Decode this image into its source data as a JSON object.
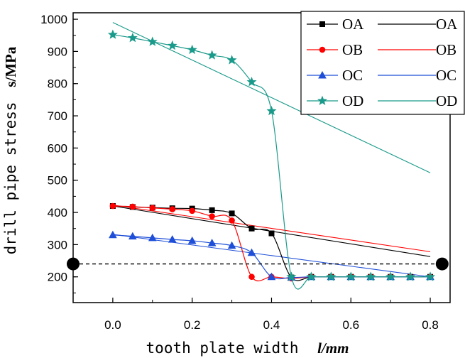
{
  "chart_data": {
    "type": "line",
    "title": "",
    "xlabel": {
      "text": "tooth plate width",
      "unit": "l/mm"
    },
    "ylabel": {
      "text": "drill pipe stress",
      "unit": "s/MPa"
    },
    "xlim": [
      -0.1,
      0.85
    ],
    "ylim": [
      120,
      1020
    ],
    "x_ticks": [
      0.0,
      0.2,
      0.4,
      0.6,
      0.8
    ],
    "x_tick_labels": [
      "0.0",
      "0.2",
      "0.4",
      "0.6",
      "0.8"
    ],
    "y_ticks": [
      200,
      300,
      400,
      500,
      600,
      700,
      800,
      900,
      1000
    ],
    "y_tick_labels": [
      "200",
      "300",
      "400",
      "500",
      "600",
      "700",
      "800",
      "900",
      "1000"
    ],
    "legend_position": "top-right",
    "series": [
      {
        "name": "OA",
        "color": "#000000",
        "marker": "square",
        "x": [
          0.0,
          0.05,
          0.1,
          0.15,
          0.2,
          0.25,
          0.3,
          0.35,
          0.4,
          0.45,
          0.5,
          0.55,
          0.6,
          0.65,
          0.7,
          0.75,
          0.8
        ],
        "y": [
          420,
          417,
          415,
          413,
          412,
          407,
          397,
          350,
          335,
          198,
          200,
          200,
          200,
          200,
          200,
          200,
          200
        ]
      },
      {
        "name": "OB",
        "color": "#ff0000",
        "marker": "circle",
        "x": [
          0.0,
          0.05,
          0.1,
          0.15,
          0.2,
          0.25,
          0.3,
          0.35,
          0.4,
          0.45,
          0.5,
          0.55,
          0.6,
          0.65,
          0.7,
          0.75,
          0.8
        ],
        "y": [
          420,
          418,
          414,
          410,
          405,
          388,
          375,
          200,
          200,
          195,
          200,
          200,
          200,
          200,
          200,
          200,
          200
        ]
      },
      {
        "name": "OC",
        "color": "#1f4fd8",
        "marker": "triangle",
        "x": [
          0.0,
          0.05,
          0.1,
          0.15,
          0.2,
          0.25,
          0.3,
          0.35,
          0.4,
          0.45,
          0.5,
          0.55,
          0.6,
          0.65,
          0.7,
          0.75,
          0.8
        ],
        "y": [
          330,
          326,
          321,
          316,
          312,
          305,
          297,
          275,
          200,
          198,
          200,
          200,
          200,
          200,
          200,
          200,
          200
        ]
      },
      {
        "name": "OD",
        "color": "#1a9a8a",
        "marker": "star",
        "x": [
          0.0,
          0.05,
          0.1,
          0.15,
          0.2,
          0.25,
          0.3,
          0.35,
          0.4,
          0.45,
          0.5,
          0.55,
          0.6,
          0.65,
          0.7,
          0.75,
          0.8
        ],
        "y": [
          952,
          942,
          930,
          918,
          905,
          888,
          873,
          805,
          715,
          200,
          200,
          200,
          200,
          200,
          200,
          200,
          200
        ]
      }
    ],
    "fit_lines": [
      {
        "name": "OA",
        "color": "#000000",
        "x": [
          0.0,
          0.8
        ],
        "y": [
          420,
          263
        ]
      },
      {
        "name": "OB",
        "color": "#ff0000",
        "x": [
          0.0,
          0.8
        ],
        "y": [
          423,
          278
        ]
      },
      {
        "name": "OC",
        "color": "#1f4fd8",
        "x": [
          0.0,
          0.8
        ],
        "y": [
          332,
          200
        ]
      },
      {
        "name": "OD",
        "color": "#1a9a8a",
        "x": [
          0.0,
          0.8
        ],
        "y": [
          990,
          523
        ]
      }
    ],
    "reference_line": {
      "y": 240,
      "x": [
        -0.1,
        0.83
      ],
      "style": "dashed",
      "color": "#000000",
      "endpoints": "filled-circle"
    }
  }
}
